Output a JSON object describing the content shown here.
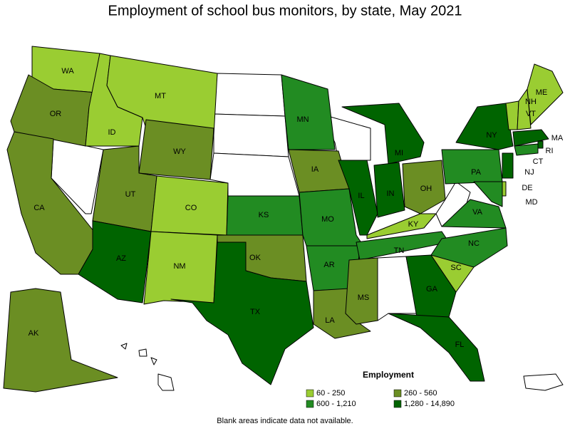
{
  "title": "Employment of school bus monitors, by state, May 2021",
  "legend": {
    "title": "Employment",
    "classes": [
      {
        "label": "60 - 250",
        "color": "#9acd32"
      },
      {
        "label": "260 - 560",
        "color": "#6b8e23"
      },
      {
        "label": "600 - 1,210",
        "color": "#228b22"
      },
      {
        "label": "1,280 - 14,890",
        "color": "#006400"
      }
    ]
  },
  "states": [
    {
      "label": "WA",
      "color": "#9acd32"
    },
    {
      "label": "OR",
      "color": "#6b8e23"
    },
    {
      "label": "CA",
      "color": "#6b8e23"
    },
    {
      "label": "ID",
      "color": "#9acd32"
    },
    {
      "label": "MT",
      "color": "#9acd32"
    },
    {
      "label": "WY",
      "color": "#6b8e23"
    },
    {
      "label": "UT",
      "color": "#6b8e23"
    },
    {
      "label": "CO",
      "color": "#9acd32"
    },
    {
      "label": "AZ",
      "color": "#006400"
    },
    {
      "label": "NM",
      "color": "#9acd32"
    },
    {
      "label": "KS",
      "color": "#228b22"
    },
    {
      "label": "OK",
      "color": "#6b8e23"
    },
    {
      "label": "TX",
      "color": "#006400"
    },
    {
      "label": "MN",
      "color": "#228b22"
    },
    {
      "label": "IA",
      "color": "#6b8e23"
    },
    {
      "label": "MO",
      "color": "#228b22"
    },
    {
      "label": "AR",
      "color": "#228b22"
    },
    {
      "label": "LA",
      "color": "#6b8e23"
    },
    {
      "label": "IL",
      "color": "#006400"
    },
    {
      "label": "MI",
      "color": "#006400"
    },
    {
      "label": "IN",
      "color": "#006400"
    },
    {
      "label": "OH",
      "color": "#6b8e23"
    },
    {
      "label": "KY",
      "color": "#9acd32"
    },
    {
      "label": "TN",
      "color": "#228b22"
    },
    {
      "label": "MS",
      "color": "#6b8e23"
    },
    {
      "label": "GA",
      "color": "#006400"
    },
    {
      "label": "FL",
      "color": "#006400"
    },
    {
      "label": "SC",
      "color": "#9acd32"
    },
    {
      "label": "NC",
      "color": "#228b22"
    },
    {
      "label": "VA",
      "color": "#228b22"
    },
    {
      "label": "PA",
      "color": "#228b22"
    },
    {
      "label": "NY",
      "color": "#006400"
    },
    {
      "label": "VT",
      "color": "#9acd32"
    },
    {
      "label": "NH",
      "color": "#9acd32"
    },
    {
      "label": "ME",
      "color": "#9acd32"
    },
    {
      "label": "MA",
      "color": "#006400"
    },
    {
      "label": "RI",
      "color": "#006400"
    },
    {
      "label": "CT",
      "color": "#228b22"
    },
    {
      "label": "NJ",
      "color": "#006400"
    },
    {
      "label": "DE",
      "color": "#9acd32"
    },
    {
      "label": "MD",
      "color": "#228b22"
    },
    {
      "label": "AK",
      "color": "#6b8e23"
    }
  ],
  "note": "Blank areas indicate data not available."
}
